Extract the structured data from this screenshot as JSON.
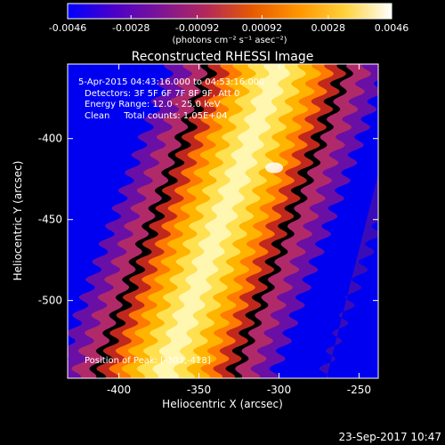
{
  "colorbar": {
    "tick_labels": [
      "-0.0046",
      "-0.0028",
      "-0.00092",
      "0.00092",
      "0.0028",
      "0.0046"
    ],
    "tick_values": [
      -0.0046,
      -0.0028,
      -0.00092,
      0.00092,
      0.0028,
      0.0046
    ],
    "unit_label": "(photons cm⁻² s⁻¹ asec⁻²)",
    "range": [
      -0.0046,
      0.0046
    ],
    "colors": [
      "#0000ff",
      "#4b00c8",
      "#7d1496",
      "#b4285a",
      "#e65a00",
      "#ff9600",
      "#ffd23c",
      "#ffffff"
    ]
  },
  "plot": {
    "title": "Reconstructed RHESSI Image",
    "info_lines": [
      "5-Apr-2015 04:43:16.000 to 04:53:16.000",
      "Detectors: 3F 5F 6F 7F 8F 9F, Att 0",
      "Energy Range: 12.0 - 25.0 keV",
      "Clean     Total counts: 1.05E+04"
    ],
    "position_label": "Position of Peak: [-303,-418]"
  },
  "chart_data": {
    "type": "heatmap",
    "title": "Reconstructed RHESSI Image",
    "xlabel": "Heliocentric X (arcsec)",
    "ylabel": "Heliocentric Y (arcsec)",
    "xlim": [
      -432,
      -238
    ],
    "ylim": [
      -548,
      -354
    ],
    "xticks": [
      -400,
      -350,
      -300,
      -250
    ],
    "yticks": [
      -400,
      -450,
      -500
    ],
    "xtick_labels": [
      "-400",
      "-350",
      "-300",
      "-250"
    ],
    "ytick_labels": [
      "-400",
      "-450",
      "-500"
    ],
    "peak": [
      -303,
      -418
    ],
    "band": {
      "center_top": [
        -300,
        -354
      ],
      "center_bottom": [
        -372,
        -548
      ],
      "width_arcsec": 52,
      "ripple_period_arcsec": 11,
      "ripple_amplitude_arcsec": 4
    }
  },
  "footer": {
    "timestamp": "23-Sep-2017 10:47"
  }
}
